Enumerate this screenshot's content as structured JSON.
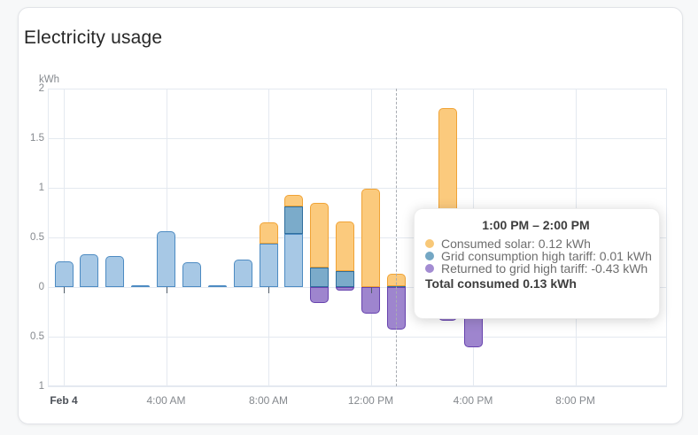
{
  "card": {
    "title": "Electricity usage"
  },
  "chart_data": {
    "type": "bar",
    "stacked": true,
    "unit": "kWh",
    "ylabel": "kWh",
    "xlabel": "",
    "ylim": [
      -1,
      2
    ],
    "grid": true,
    "yticks": [
      {
        "value": 2,
        "label": "2"
      },
      {
        "value": 1.5,
        "label": "1.5"
      },
      {
        "value": 1,
        "label": "1"
      },
      {
        "value": 0.5,
        "label": "0.5"
      },
      {
        "value": 0,
        "label": "0"
      },
      {
        "value": -0.5,
        "label": "0.5"
      },
      {
        "value": -1,
        "label": "1"
      }
    ],
    "xticks": [
      {
        "hour": 0,
        "label": "Feb 4",
        "emphasis": true
      },
      {
        "hour": 4,
        "label": "4:00 AM"
      },
      {
        "hour": 8,
        "label": "8:00 AM"
      },
      {
        "hour": 12,
        "label": "12:00 PM"
      },
      {
        "hour": 16,
        "label": "4:00 PM"
      },
      {
        "hour": 20,
        "label": "8:00 PM"
      }
    ],
    "series": [
      {
        "key": "grid_low",
        "fill": "#a7c8e5",
        "border": "#4d8bc2"
      },
      {
        "key": "grid_high",
        "name": "Grid consumption high tariff",
        "fill": "#7babca",
        "border": "#2f6e9d"
      },
      {
        "key": "solar",
        "name": "Consumed solar",
        "fill": "#fbca7d",
        "border": "#f0a336"
      },
      {
        "key": "returned",
        "name": "Returned to grid high tariff",
        "fill": "#9e85ce",
        "border": "#6743ae"
      }
    ],
    "bars": [
      {
        "hour": 0,
        "segments": [
          {
            "key": "grid_low",
            "value": 0.26
          }
        ]
      },
      {
        "hour": 1,
        "segments": [
          {
            "key": "grid_low",
            "value": 0.33
          }
        ]
      },
      {
        "hour": 2,
        "segments": [
          {
            "key": "grid_low",
            "value": 0.31
          }
        ]
      },
      {
        "hour": 3,
        "segments": [
          {
            "key": "grid_low",
            "value": 0.01
          }
        ]
      },
      {
        "hour": 4,
        "segments": [
          {
            "key": "grid_low",
            "value": 0.56
          }
        ]
      },
      {
        "hour": 5,
        "segments": [
          {
            "key": "grid_low",
            "value": 0.25
          }
        ]
      },
      {
        "hour": 6,
        "segments": [
          {
            "key": "grid_low",
            "value": 0.01
          }
        ]
      },
      {
        "hour": 7,
        "segments": [
          {
            "key": "grid_low",
            "value": 0.28
          }
        ]
      },
      {
        "hour": 8,
        "segments": [
          {
            "key": "grid_low",
            "value": 0.44
          },
          {
            "key": "solar",
            "value": 0.21
          }
        ]
      },
      {
        "hour": 9,
        "segments": [
          {
            "key": "grid_low",
            "value": 0.54
          },
          {
            "key": "grid_high",
            "value": 0.27
          },
          {
            "key": "solar",
            "value": 0.12
          }
        ]
      },
      {
        "hour": 10,
        "segments": [
          {
            "key": "grid_high",
            "value": 0.2
          },
          {
            "key": "solar",
            "value": 0.65
          },
          {
            "key": "returned",
            "value": -0.16
          }
        ]
      },
      {
        "hour": 11,
        "segments": [
          {
            "key": "grid_high",
            "value": 0.16
          },
          {
            "key": "solar",
            "value": 0.5
          },
          {
            "key": "returned",
            "value": -0.04
          }
        ]
      },
      {
        "hour": 12,
        "segments": [
          {
            "key": "solar",
            "value": 0.99
          },
          {
            "key": "returned",
            "value": -0.27
          }
        ]
      },
      {
        "hour": 13,
        "segments": [
          {
            "key": "grid_high",
            "value": 0.01
          },
          {
            "key": "solar",
            "value": 0.12
          },
          {
            "key": "returned",
            "value": -0.43
          }
        ],
        "hovered": true
      },
      {
        "hour": 15,
        "segments": [
          {
            "key": "solar",
            "value": 1.8
          },
          {
            "key": "returned",
            "value": -0.34
          }
        ]
      },
      {
        "hour": 16,
        "segments": [
          {
            "key": "returned",
            "value": -0.61
          }
        ]
      }
    ],
    "hover_line_hour": 13
  },
  "tooltip": {
    "title": "1:00 PM – 2:00 PM",
    "rows": [
      {
        "text": "Consumed solar: 0.12 kWh",
        "color": "#f8c878"
      },
      {
        "text": "Grid consumption high tariff: 0.01 kWh",
        "color": "#74a7c4"
      },
      {
        "text": "Returned to grid high tariff: -0.43 kWh",
        "color": "#a38cd2"
      }
    ],
    "total": "Total consumed 0.13 kWh"
  }
}
